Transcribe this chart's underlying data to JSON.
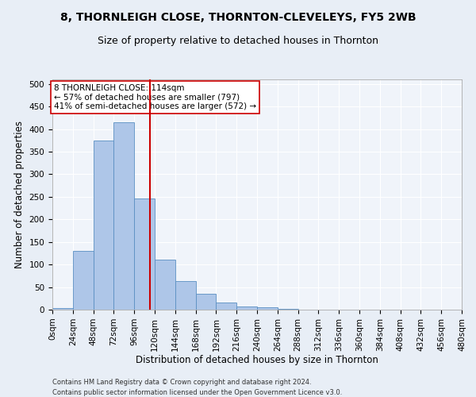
{
  "title": "8, THORNLEIGH CLOSE, THORNTON-CLEVELEYS, FY5 2WB",
  "subtitle": "Size of property relative to detached houses in Thornton",
  "xlabel": "Distribution of detached houses by size in Thornton",
  "ylabel": "Number of detached properties",
  "footnote1": "Contains HM Land Registry data © Crown copyright and database right 2024.",
  "footnote2": "Contains public sector information licensed under the Open Government Licence v3.0.",
  "bin_edges": [
    0,
    24,
    48,
    72,
    96,
    120,
    144,
    168,
    192,
    216,
    240,
    264,
    288,
    312,
    336,
    360,
    384,
    408,
    432,
    456,
    480
  ],
  "bar_heights": [
    3,
    130,
    375,
    415,
    247,
    110,
    63,
    35,
    15,
    7,
    5,
    1,
    0,
    0,
    0,
    0,
    0,
    0,
    0,
    0
  ],
  "bar_color": "#aec6e8",
  "bar_edge_color": "#5a8fc2",
  "property_size": 114,
  "vline_color": "#cc0000",
  "annotation_text": "8 THORNLEIGH CLOSE: 114sqm\n← 57% of detached houses are smaller (797)\n41% of semi-detached houses are larger (572) →",
  "annotation_box_color": "#ffffff",
  "annotation_box_edge_color": "#cc0000",
  "ylim": [
    0,
    510
  ],
  "yticks": [
    0,
    50,
    100,
    150,
    200,
    250,
    300,
    350,
    400,
    450,
    500
  ],
  "bg_color": "#e8eef6",
  "plot_bg_color": "#f0f4fa",
  "grid_color": "#ffffff",
  "title_fontsize": 10,
  "subtitle_fontsize": 9,
  "tick_fontsize": 7.5,
  "label_fontsize": 8.5,
  "footnote_fontsize": 6.0
}
